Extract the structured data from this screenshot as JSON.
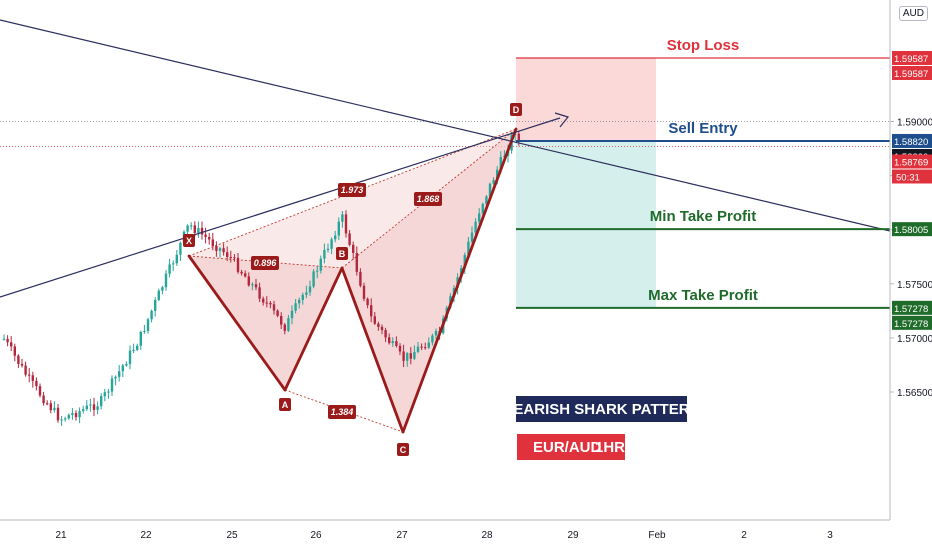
{
  "currency": "AUD",
  "chart_data": {
    "type": "candlestick",
    "symbol": "EUR/AUD",
    "timeframe": "1HR",
    "ylim": [
      1.5615,
      1.603
    ],
    "x_ticks": [
      "21",
      "22",
      "25",
      "26",
      "27",
      "28",
      "29",
      "Feb",
      "2",
      "3"
    ],
    "y_ticks": [
      1.565,
      1.57,
      1.575,
      1.58,
      1.585,
      1.59
    ],
    "y_tick_labels": [
      "1.56500",
      "1.57000",
      "1.57500",
      "1.58000",
      "1.58500",
      "1.59000"
    ],
    "price_tags": [
      {
        "value": 1.59587,
        "label": "1.59587",
        "color": "#e0323c"
      },
      {
        "value": 1.59587,
        "label": "1.59587",
        "color": "#e0323c",
        "offset": 1
      },
      {
        "value": 1.5882,
        "label": "1.58820",
        "color": "#1e4e8c"
      },
      {
        "value": 1.5882,
        "label": "1.58820",
        "color": "#131722",
        "offset": 1
      },
      {
        "value": 1.58769,
        "label": "1.58769",
        "color": "#e0323c",
        "offset": 1
      },
      {
        "value": 1.58005,
        "label": "1.58005",
        "color": "#1f6b2a"
      },
      {
        "value": 1.57278,
        "label": "1.57278",
        "color": "#1f6b2a"
      },
      {
        "value": 1.57278,
        "label": "1.57278",
        "color": "#1f6b2a",
        "offset": 1
      }
    ],
    "countdown": "50:31",
    "levels": [
      {
        "name": "Stop Loss",
        "value": 1.59587,
        "color": "#e0323c"
      },
      {
        "name": "Sell Entry",
        "value": 1.5882,
        "color": "#1e4e8c"
      },
      {
        "name": "Min Take Profit",
        "value": 1.58005,
        "color": "#1f6b2a"
      },
      {
        "name": "Max Take Profit",
        "value": 1.57278,
        "color": "#1f6b2a"
      }
    ],
    "pattern": {
      "name": "BEARISH SHARK PATTERN",
      "points": [
        {
          "label": "X",
          "value": 1.5805
        },
        {
          "label": "A",
          "value": 1.571
        },
        {
          "label": "B",
          "value": 1.5812
        },
        {
          "label": "C",
          "value": 1.568
        },
        {
          "label": "D",
          "value": 1.5894
        }
      ],
      "ratios": [
        "0.896",
        "1.384",
        "1.973",
        "1.868"
      ]
    },
    "pair_label": "EUR/AUD",
    "tf_label": "1HR",
    "colors": {
      "bull": "#26a69a",
      "bear": "#b2273d",
      "pattern": "#9b1b1b",
      "pattern_fill": "#f2c9c9"
    }
  }
}
